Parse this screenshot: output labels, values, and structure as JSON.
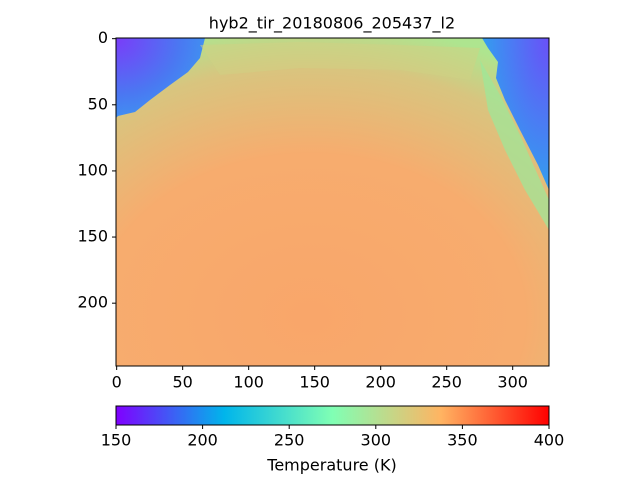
{
  "chart_data": {
    "type": "image",
    "title": "hyb2_tir_20180806_205437_l2",
    "xlim": [
      -0.5,
      327.5
    ],
    "ylim": [
      247.5,
      -0.5
    ],
    "xticks": [
      0,
      50,
      100,
      150,
      200,
      250,
      300
    ],
    "yticks": [
      0,
      50,
      100,
      150,
      200
    ],
    "colorbar": {
      "label": "Temperature (K)",
      "lim": [
        150,
        400
      ],
      "ticks": [
        150,
        200,
        250,
        300,
        350,
        400
      ],
      "colormap": "rainbow"
    }
  }
}
